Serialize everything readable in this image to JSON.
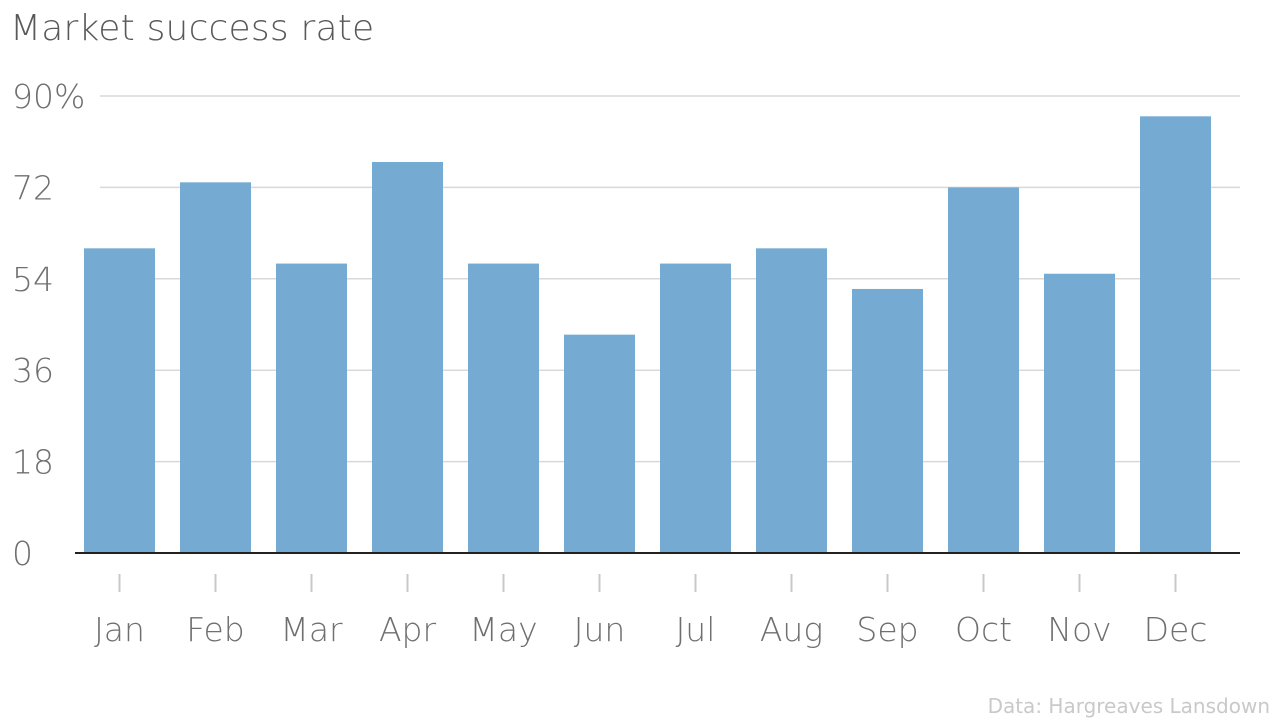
{
  "chart_data": {
    "type": "bar",
    "title": "Market success rate",
    "categories": [
      "Jan",
      "Feb",
      "Mar",
      "Apr",
      "May",
      "Jun",
      "Jul",
      "Aug",
      "Sep",
      "Oct",
      "Nov",
      "Dec"
    ],
    "values": [
      60,
      73,
      57,
      77,
      57,
      43,
      57,
      60,
      52,
      72,
      55,
      86
    ],
    "ylim": [
      0,
      90
    ],
    "y_ticks": [
      0,
      18,
      36,
      54,
      72,
      90
    ],
    "y_tick_labels": [
      "0",
      "18",
      "36",
      "54",
      "72",
      "90%"
    ],
    "xlabel": "",
    "ylabel": "",
    "grid": true,
    "bar_color": "#75abd2",
    "source": "Data: Hargreaves Lansdown"
  }
}
